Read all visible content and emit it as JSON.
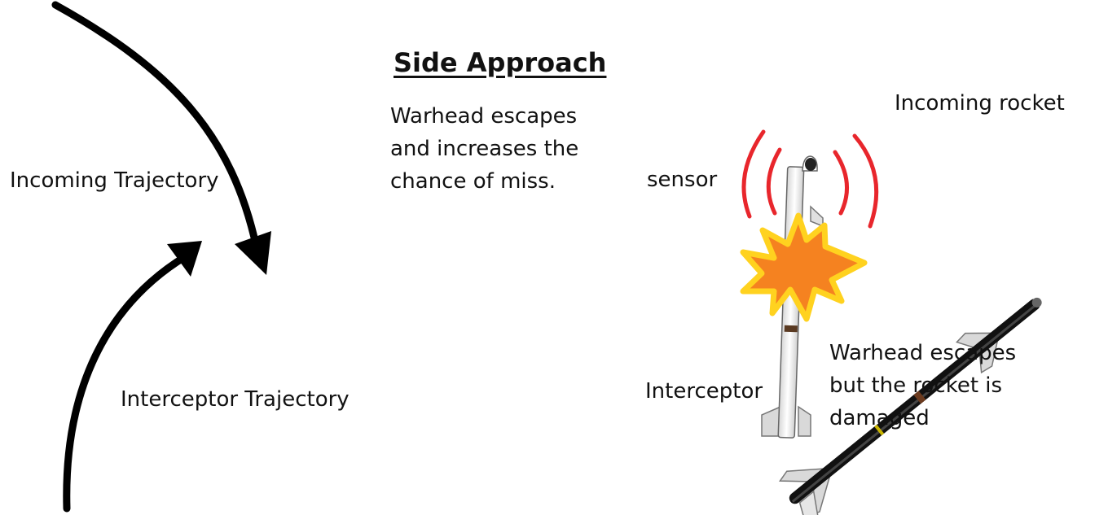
{
  "title": "Side Approach",
  "labels": {
    "incoming_trajectory": "Incoming Trajectory",
    "interceptor_trajectory": "Interceptor Trajectory",
    "side_note": "Warhead escapes\nand increases the\nchance of miss.",
    "incoming_rocket": "Incoming rocket",
    "sensor": "sensor",
    "interceptor": "Interceptor",
    "result_note": "Warhead escapes\nbut the rocket is\ndamaged"
  },
  "colors": {
    "arrow": "#000000",
    "sensor_waves": "#e8262c",
    "explosion_fill": "#f58220",
    "explosion_outline": "#ffd21f",
    "missile_body": "#f2f2f2",
    "rocket_body": "#111111",
    "fin": "#d9d9d9"
  }
}
